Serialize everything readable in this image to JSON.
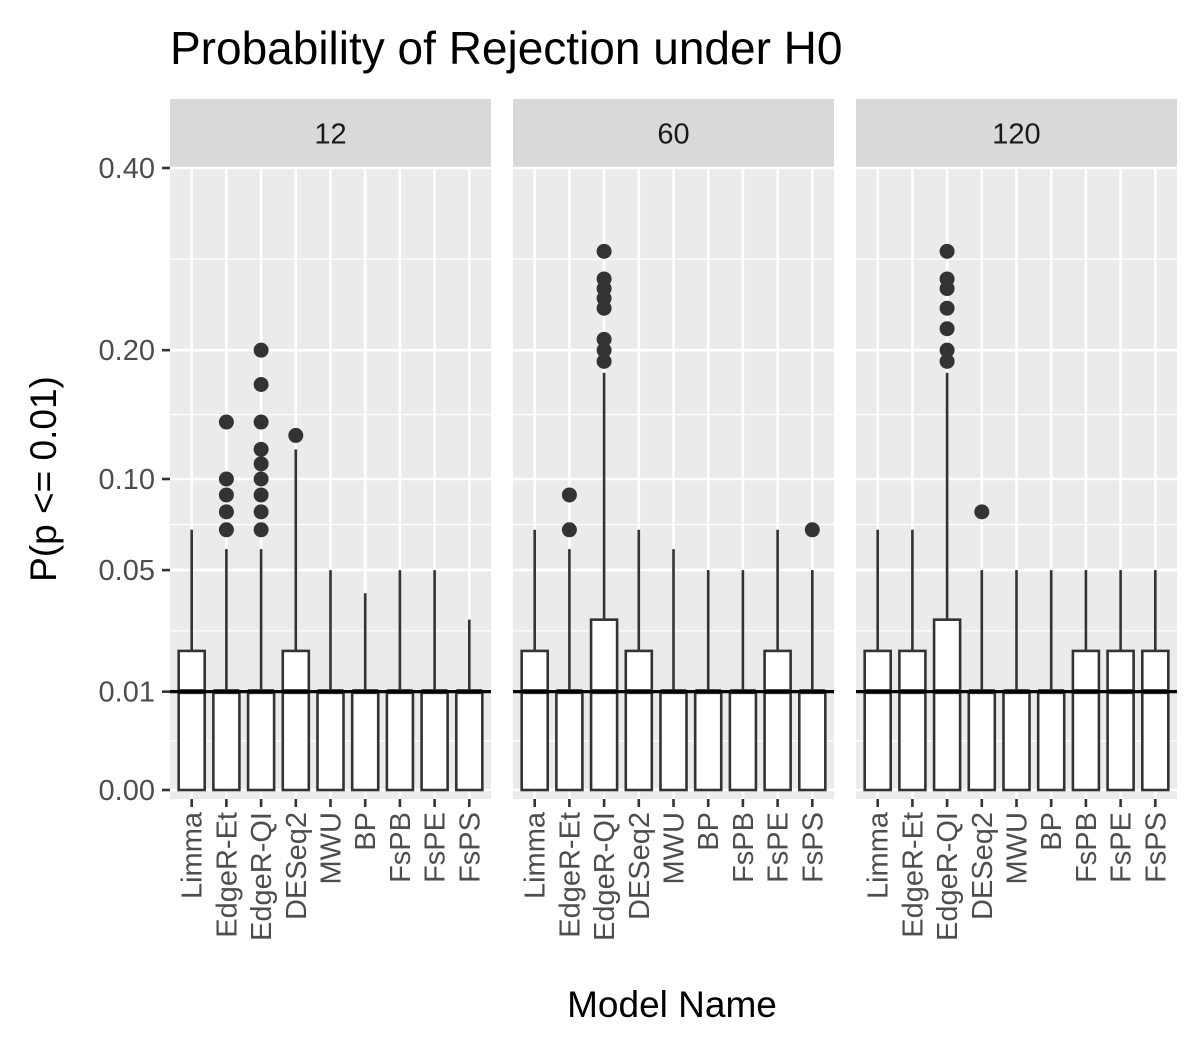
{
  "chart_data": {
    "type": "box",
    "title": "Probability of Rejection under H0",
    "xlabel": "Model Name",
    "ylabel": "P(p <= 0.01)",
    "y_scale": "sqrt",
    "ylim": [
      0,
      0.5
    ],
    "y_ticks": [
      0.0,
      0.01,
      0.05,
      0.1,
      0.2,
      0.4
    ],
    "y_tick_labels": [
      "0.00",
      "0.01",
      "0.05",
      "0.10",
      "0.20",
      "0.40"
    ],
    "reference_line": 0.01,
    "categories": [
      "Limma",
      "EdgeR-Et",
      "EdgeR-QI",
      "DESeq2",
      "MWU",
      "BP",
      "FsPB",
      "FsPE",
      "FsPS"
    ],
    "facets": [
      {
        "label": "12",
        "boxes": [
          {
            "category": "Limma",
            "min": 0,
            "q1": 0,
            "median": 0.01,
            "q3": 0.02,
            "max": 0.07,
            "outliers": []
          },
          {
            "category": "EdgeR-Et",
            "min": 0,
            "q1": 0,
            "median": 0.01,
            "q3": 0.01,
            "max": 0.06,
            "outliers": [
              0.07,
              0.08,
              0.09,
              0.1,
              0.14
            ]
          },
          {
            "category": "EdgeR-QI",
            "min": 0,
            "q1": 0,
            "median": 0.01,
            "q3": 0.01,
            "max": 0.06,
            "outliers": [
              0.07,
              0.08,
              0.09,
              0.1,
              0.11,
              0.12,
              0.14,
              0.17,
              0.2
            ]
          },
          {
            "category": "DESeq2",
            "min": 0,
            "q1": 0,
            "median": 0.01,
            "q3": 0.02,
            "max": 0.12,
            "outliers": [
              0.13
            ]
          },
          {
            "category": "MWU",
            "min": 0,
            "q1": 0,
            "median": 0.01,
            "q3": 0.01,
            "max": 0.05,
            "outliers": []
          },
          {
            "category": "BP",
            "min": 0,
            "q1": 0,
            "median": 0.01,
            "q3": 0.01,
            "max": 0.04,
            "outliers": []
          },
          {
            "category": "FsPB",
            "min": 0,
            "q1": 0,
            "median": 0.01,
            "q3": 0.01,
            "max": 0.05,
            "outliers": []
          },
          {
            "category": "FsPE",
            "min": 0,
            "q1": 0,
            "median": 0.01,
            "q3": 0.01,
            "max": 0.05,
            "outliers": []
          },
          {
            "category": "FsPS",
            "min": 0,
            "q1": 0,
            "median": 0.01,
            "q3": 0.01,
            "max": 0.03,
            "outliers": []
          }
        ]
      },
      {
        "label": "60",
        "boxes": [
          {
            "category": "Limma",
            "min": 0,
            "q1": 0,
            "median": 0.01,
            "q3": 0.02,
            "max": 0.07,
            "outliers": []
          },
          {
            "category": "EdgeR-Et",
            "min": 0,
            "q1": 0,
            "median": 0.01,
            "q3": 0.01,
            "max": 0.06,
            "outliers": [
              0.07,
              0.09
            ]
          },
          {
            "category": "EdgeR-QI",
            "min": 0,
            "q1": 0,
            "median": 0.01,
            "q3": 0.03,
            "max": 0.18,
            "outliers": [
              0.19,
              0.2,
              0.21,
              0.24,
              0.25,
              0.26,
              0.27,
              0.3
            ]
          },
          {
            "category": "DESeq2",
            "min": 0,
            "q1": 0,
            "median": 0.01,
            "q3": 0.02,
            "max": 0.07,
            "outliers": []
          },
          {
            "category": "MWU",
            "min": 0,
            "q1": 0,
            "median": 0.01,
            "q3": 0.01,
            "max": 0.06,
            "outliers": []
          },
          {
            "category": "BP",
            "min": 0,
            "q1": 0,
            "median": 0.01,
            "q3": 0.01,
            "max": 0.05,
            "outliers": []
          },
          {
            "category": "FsPB",
            "min": 0,
            "q1": 0,
            "median": 0.01,
            "q3": 0.01,
            "max": 0.05,
            "outliers": []
          },
          {
            "category": "FsPE",
            "min": 0,
            "q1": 0,
            "median": 0.01,
            "q3": 0.02,
            "max": 0.07,
            "outliers": []
          },
          {
            "category": "FsPS",
            "min": 0,
            "q1": 0,
            "median": 0.01,
            "q3": 0.01,
            "max": 0.05,
            "outliers": [
              0.07
            ]
          }
        ]
      },
      {
        "label": "120",
        "boxes": [
          {
            "category": "Limma",
            "min": 0,
            "q1": 0,
            "median": 0.01,
            "q3": 0.02,
            "max": 0.07,
            "outliers": []
          },
          {
            "category": "EdgeR-Et",
            "min": 0,
            "q1": 0,
            "median": 0.01,
            "q3": 0.02,
            "max": 0.07,
            "outliers": []
          },
          {
            "category": "EdgeR-QI",
            "min": 0,
            "q1": 0,
            "median": 0.01,
            "q3": 0.03,
            "max": 0.18,
            "outliers": [
              0.19,
              0.2,
              0.22,
              0.24,
              0.26,
              0.27,
              0.3
            ]
          },
          {
            "category": "DESeq2",
            "min": 0,
            "q1": 0,
            "median": 0.01,
            "q3": 0.01,
            "max": 0.05,
            "outliers": [
              0.08
            ]
          },
          {
            "category": "MWU",
            "min": 0,
            "q1": 0,
            "median": 0.01,
            "q3": 0.01,
            "max": 0.05,
            "outliers": []
          },
          {
            "category": "BP",
            "min": 0,
            "q1": 0,
            "median": 0.01,
            "q3": 0.01,
            "max": 0.05,
            "outliers": []
          },
          {
            "category": "FsPB",
            "min": 0,
            "q1": 0,
            "median": 0.01,
            "q3": 0.02,
            "max": 0.05,
            "outliers": []
          },
          {
            "category": "FsPE",
            "min": 0,
            "q1": 0,
            "median": 0.01,
            "q3": 0.02,
            "max": 0.05,
            "outliers": []
          },
          {
            "category": "FsPS",
            "min": 0,
            "q1": 0,
            "median": 0.01,
            "q3": 0.02,
            "max": 0.05,
            "outliers": []
          }
        ]
      }
    ]
  }
}
